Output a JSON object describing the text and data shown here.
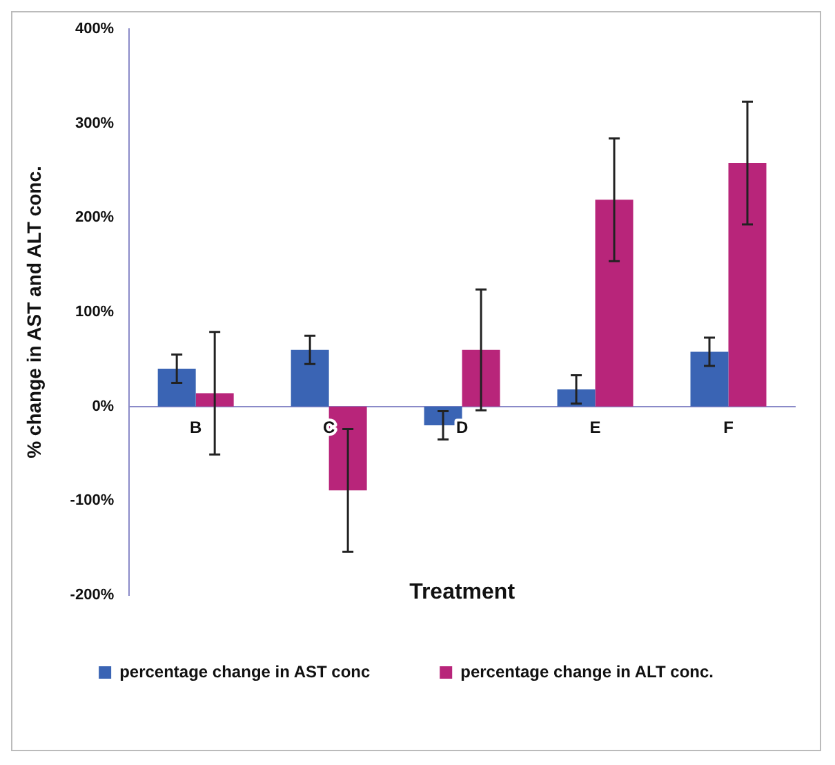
{
  "chart_data": {
    "type": "bar",
    "xlabel": "Treatment",
    "ylabel": "% change in AST and ALT conc.",
    "categories": [
      "B",
      "C",
      "D",
      "E",
      "F"
    ],
    "series": [
      {
        "name": "percentage change in AST conc",
        "color": "#3a64b4",
        "values": [
          40,
          60,
          -20,
          18,
          58
        ],
        "errors": [
          15,
          15,
          15,
          15,
          15
        ]
      },
      {
        "name": "percentage change in ALT conc.",
        "color": "#b8257a",
        "values": [
          14,
          -89,
          60,
          219,
          258
        ],
        "errors": [
          65,
          65,
          64,
          65,
          65
        ]
      }
    ],
    "ylim": [
      -200,
      400
    ],
    "yticks": [
      {
        "value": -200,
        "label": "-200%"
      },
      {
        "value": -100,
        "label": "-100%"
      },
      {
        "value": 0,
        "label": "0%"
      },
      {
        "value": 100,
        "label": "100%"
      },
      {
        "value": 200,
        "label": "200%"
      },
      {
        "value": 300,
        "label": "300%"
      },
      {
        "value": 400,
        "label": "400%"
      }
    ],
    "grid": false,
    "legend": "bottom"
  }
}
